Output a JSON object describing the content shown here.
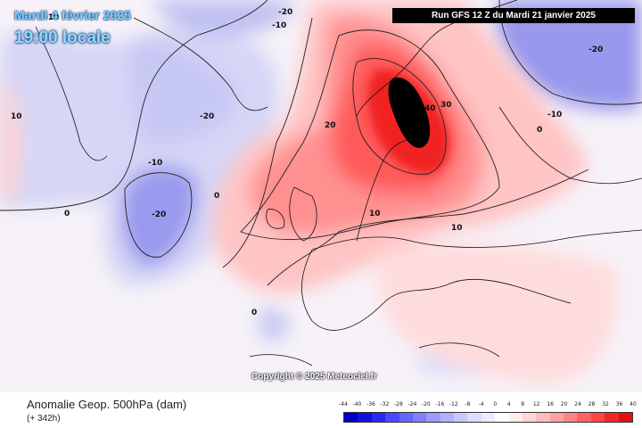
{
  "titles": {
    "date": "Mardi 4 février 2025",
    "time": "19:00 locale",
    "run": "Run GFS 12 Z du Mardi 21 janvier 2025",
    "copyright": "Copyright © 2025 Meteociel.fr"
  },
  "footer": {
    "field": "Anomalie Geop. 500hPa (dam)",
    "lead": "(+ 342h)"
  },
  "legend": {
    "ticks": [
      "-44",
      "-40",
      "-36",
      "-32",
      "-28",
      "-24",
      "-20",
      "-16",
      "-12",
      "-8",
      "-4",
      "0",
      "4",
      "8",
      "12",
      "16",
      "20",
      "24",
      "28",
      "32",
      "36",
      "40"
    ],
    "colors": [
      "#0000c8",
      "#1010e0",
      "#2828f0",
      "#4848ff",
      "#6666ff",
      "#8080ff",
      "#9a9aff",
      "#b0b0ff",
      "#c8c8ff",
      "#dcdcff",
      "#ececff",
      "#ffffff",
      "#ffecec",
      "#ffd6d6",
      "#ffbcbc",
      "#ffa0a0",
      "#ff8484",
      "#ff6464",
      "#ff4646",
      "#f02828",
      "#e01010"
    ]
  },
  "contour_labels": [
    "-20",
    "-10",
    "10",
    "-20",
    "-10",
    "0",
    "-20",
    "0",
    "20",
    "40",
    "30",
    "-20",
    "-10",
    "0",
    "10",
    "10",
    "0",
    "-10"
  ],
  "colors": {
    "ocean_base": "#f4f4ff",
    "strong_positive": "#000000"
  }
}
